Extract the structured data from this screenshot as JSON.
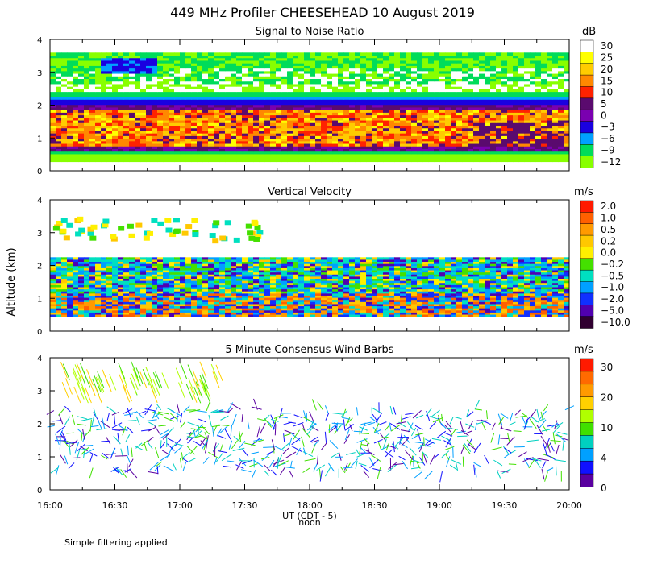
{
  "title": "449 MHz Profiler CHEESEHEAD 10 August 2019",
  "ylabel": "Altitude (km)",
  "x_ticks": [
    "16:00",
    "16:30",
    "17:00",
    "17:30",
    "18:00",
    "18:30",
    "19:00",
    "19:30",
    "20:00"
  ],
  "xlabel": "UT  (CDT - 5)",
  "noon_label": "noon",
  "footer": "Simple filtering applied",
  "chart_data": [
    {
      "type": "heatmap",
      "title": "Signal to Noise Ratio",
      "units": "dB",
      "x_range": [
        "16:00",
        "20:00"
      ],
      "y_ticks": [
        "0",
        "1",
        "2",
        "3",
        "4"
      ],
      "ylim": [
        0,
        4
      ],
      "colorbar": {
        "labels": [
          "30",
          "25",
          "20",
          "15",
          "10",
          "5",
          "0",
          "−3",
          "−6",
          "−9",
          "−12"
        ],
        "colors": [
          "#ffffff",
          "#ffff00",
          "#ffcc00",
          "#ff8800",
          "#ff2200",
          "#5a0a6e",
          "#7a00b0",
          "#1a00e0",
          "#00a0ff",
          "#00dc5a",
          "#88ff00"
        ]
      }
    },
    {
      "type": "heatmap",
      "title": "Vertical Velocity",
      "units": "m/s",
      "x_range": [
        "16:00",
        "20:00"
      ],
      "y_ticks": [
        "0",
        "1",
        "2",
        "3",
        "4"
      ],
      "ylim": [
        0,
        4
      ],
      "colorbar": {
        "labels": [
          "2.0",
          "1.0",
          "0.5",
          "0.2",
          "0.0",
          "−0.2",
          "−0.5",
          "−1.0",
          "−2.0",
          "−5.0",
          "−10.0"
        ],
        "colors": [
          "#ff1a00",
          "#ff6000",
          "#ff9a00",
          "#ffc800",
          "#fff000",
          "#44e000",
          "#00e0c0",
          "#00a0ff",
          "#1030ff",
          "#5000b0",
          "#300030"
        ]
      }
    },
    {
      "type": "scatter",
      "title": "5 Minute Consensus Wind Barbs",
      "units": "m/s",
      "x_range": [
        "16:00",
        "20:00"
      ],
      "y_ticks": [
        "0",
        "1",
        "2",
        "3",
        "4"
      ],
      "ylim": [
        0,
        4
      ],
      "colorbar": {
        "labels": [
          "30",
          "20",
          "10",
          "4",
          "0"
        ],
        "colors": [
          "#ff1a00",
          "#ff6a00",
          "#ff9a00",
          "#ffd000",
          "#b0ff00",
          "#40e000",
          "#00d0c0",
          "#00a0ff",
          "#1010ff",
          "#5a00a0"
        ]
      }
    }
  ]
}
